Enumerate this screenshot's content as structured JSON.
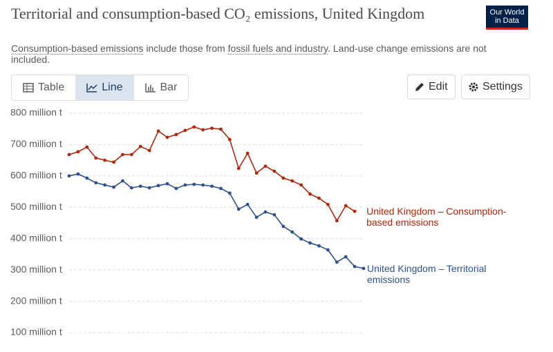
{
  "ui": {
    "logo": "Our World in Data",
    "tabs": [
      "Table",
      "Line",
      "Bar"
    ],
    "edit": "Edit",
    "settings": "Settings"
  },
  "chart_data": {
    "type": "line",
    "title": "Territorial and consumption-based CO₂ emissions, United Kingdom",
    "subtitle": [
      "Consumption-based emissions",
      " include those from ",
      "fossil fuels and industry",
      ". Land-use change emissions are not included."
    ],
    "categories": [
      null,
      null,
      null,
      null,
      null,
      null,
      null,
      null,
      null,
      null,
      null,
      null,
      null,
      null,
      null,
      null,
      null,
      null,
      null,
      null,
      null,
      null,
      null,
      null,
      null,
      null,
      null,
      null,
      null,
      null,
      null,
      null,
      null,
      null
    ],
    "ylim": [
      100,
      800
    ],
    "yticks": [
      {
        "value": 100,
        "label": "100 million t"
      },
      {
        "value": 200,
        "label": "200 million t"
      },
      {
        "value": 300,
        "label": "300 million t"
      },
      {
        "value": 400,
        "label": "400 million t"
      },
      {
        "value": 500,
        "label": "500 million t"
      },
      {
        "value": 600,
        "label": "600 million t"
      },
      {
        "value": 700,
        "label": "700 million t"
      },
      {
        "value": 800,
        "label": "800 million t"
      }
    ],
    "grid": true,
    "series": [
      {
        "name": "United Kingdom – Consumption-based emissions",
        "color": "#b2270b",
        "values": [
          668,
          677,
          692,
          657,
          650,
          644,
          668,
          668,
          694,
          681,
          743,
          723,
          732,
          745,
          756,
          747,
          752,
          749,
          716,
          624,
          672,
          609,
          631,
          615,
          593,
          584,
          571,
          542,
          529,
          509,
          457,
          505,
          487,
          null
        ]
      },
      {
        "name": "United Kingdom – Territorial emissions",
        "color": "#2d5190",
        "values": [
          600,
          606,
          593,
          578,
          571,
          564,
          584,
          562,
          567,
          562,
          569,
          575,
          560,
          571,
          573,
          571,
          567,
          560,
          545,
          494,
          509,
          468,
          485,
          476,
          439,
          421,
          399,
          386,
          377,
          364,
          325,
          342,
          311,
          305
        ]
      }
    ]
  }
}
